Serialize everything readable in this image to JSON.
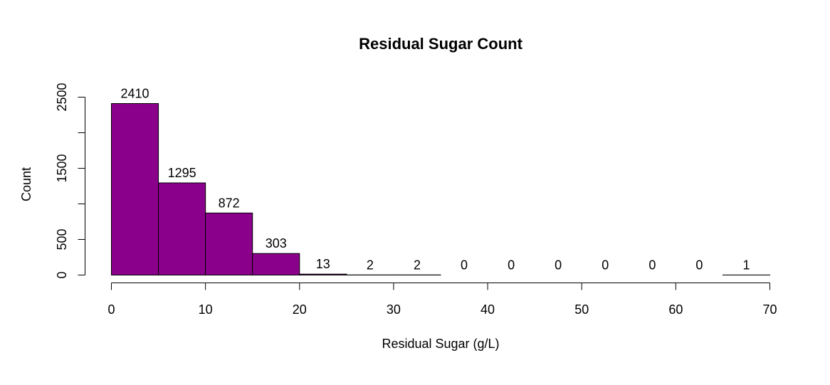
{
  "chart_data": {
    "type": "bar",
    "title": "Residual Sugar Count",
    "xlabel": "Residual Sugar (g/L)",
    "ylabel": "Count",
    "bin_edges": [
      0,
      5,
      10,
      15,
      20,
      25,
      30,
      35,
      40,
      45,
      50,
      55,
      60,
      65,
      70
    ],
    "values": [
      2410,
      1295,
      872,
      303,
      13,
      2,
      2,
      0,
      0,
      0,
      0,
      0,
      0,
      1
    ],
    "data_labels": [
      "2410",
      "1295",
      "872",
      "303",
      "13",
      "2",
      "2",
      "0",
      "0",
      "0",
      "0",
      "0",
      "0",
      "1"
    ],
    "xlim": [
      0,
      70
    ],
    "ylim": [
      0,
      2500
    ],
    "x_ticks": [
      0,
      10,
      20,
      30,
      40,
      50,
      60,
      70
    ],
    "x_tick_labels": [
      "0",
      "10",
      "20",
      "30",
      "40",
      "50",
      "60",
      "70"
    ],
    "y_ticks": [
      0,
      500,
      1000,
      1500,
      2000,
      2500
    ],
    "y_tick_labels": [
      "0",
      "500",
      "",
      "1500",
      "",
      "2500"
    ],
    "bar_color": "#8B008B",
    "bar_border_color": "#000000",
    "grid": false,
    "legend": "none"
  }
}
